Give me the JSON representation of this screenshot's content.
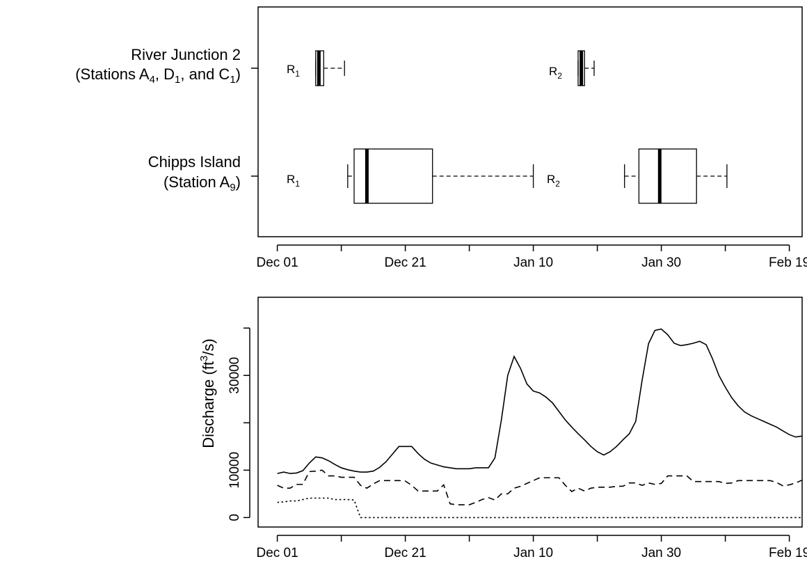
{
  "chart_data": [
    {
      "type": "boxplot",
      "x_axis_kind": "date",
      "xlim": [
        "2006-11-28",
        "2007-02-21"
      ],
      "xticks": [
        {
          "date": "2006-12-01",
          "label": "Dec 01"
        },
        {
          "date": "2006-12-21",
          "label": "Dec 21"
        },
        {
          "date": "2007-01-10",
          "label": "Jan 10"
        },
        {
          "date": "2007-01-30",
          "label": "Jan 30"
        },
        {
          "date": "2007-02-19",
          "label": "Feb 19"
        }
      ],
      "minor_ticks": [
        "2006-12-11",
        "2006-12-31",
        "2007-01-20",
        "2007-02-09"
      ],
      "rows": [
        {
          "label_line1": "River Junction 2",
          "label_line2": {
            "prefix": "(Stations A",
            "s1": "4",
            "mid1": ", D",
            "s2": "1",
            "mid2": ", and C",
            "s3": "1",
            "suffix": ")"
          },
          "boxes": [
            {
              "release": "R",
              "sub": "1",
              "min": "2006-12-07T00:00",
              "q1": "2006-12-07T00:00",
              "median": "2006-12-07T12:00",
              "q3": "2006-12-08T06:00",
              "max": "2006-12-11T12:00"
            },
            {
              "release": "R",
              "sub": "2",
              "min": "2007-01-17T00:00",
              "q1": "2007-01-17T00:00",
              "median": "2007-01-17T12:00",
              "q3": "2007-01-18T00:00",
              "max": "2007-01-19T12:00"
            }
          ]
        },
        {
          "label_line1": "Chipps Island",
          "label_line2": {
            "prefix": "(Station A",
            "s1": "9",
            "suffix": ")"
          },
          "boxes": [
            {
              "release": "R",
              "sub": "1",
              "min": "2006-12-12T00:00",
              "q1": "2006-12-13T00:00",
              "median": "2006-12-15T00:00",
              "q3": "2006-12-25T06:00",
              "max": "2007-01-10T00:00"
            },
            {
              "release": "R",
              "sub": "2",
              "min": "2007-01-24T06:00",
              "q1": "2007-01-26T12:00",
              "median": "2007-01-29T18:00",
              "q3": "2007-02-04T12:00",
              "max": "2007-02-09T06:00"
            }
          ]
        }
      ]
    },
    {
      "type": "line",
      "x_axis_kind": "date",
      "xlim": [
        "2006-11-28",
        "2007-02-21"
      ],
      "ylim": [
        -2000,
        46500
      ],
      "yticks": [
        0,
        10000,
        30000
      ],
      "ytick_labels": [
        "0",
        "10000",
        "30000"
      ],
      "ylabel": {
        "main": "Discharge (ft",
        "sup": "3",
        "tail": "/s)"
      },
      "xticks": [
        {
          "date": "2006-12-01",
          "label": "Dec 01"
        },
        {
          "date": "2006-12-21",
          "label": "Dec 21"
        },
        {
          "date": "2007-01-10",
          "label": "Jan 10"
        },
        {
          "date": "2007-01-30",
          "label": "Jan 30"
        },
        {
          "date": "2007-02-19",
          "label": "Feb 19"
        }
      ],
      "minor_ticks": [
        "2006-12-11",
        "2006-12-31",
        "2007-01-20",
        "2007-02-09"
      ],
      "series": [
        {
          "style": "solid",
          "points": [
            [
              "2006-12-01",
              9300
            ],
            [
              "2006-12-02",
              9600
            ],
            [
              "2006-12-03",
              9300
            ],
            [
              "2006-12-04",
              9400
            ],
            [
              "2006-12-05",
              9900
            ],
            [
              "2006-12-06",
              11500
            ],
            [
              "2006-12-07",
              12800
            ],
            [
              "2006-12-08",
              12600
            ],
            [
              "2006-12-09",
              12000
            ],
            [
              "2006-12-10",
              11200
            ],
            [
              "2006-12-11",
              10500
            ],
            [
              "2006-12-12",
              10100
            ],
            [
              "2006-12-13",
              9800
            ],
            [
              "2006-12-14",
              9600
            ],
            [
              "2006-12-15",
              9600
            ],
            [
              "2006-12-16",
              9800
            ],
            [
              "2006-12-17",
              10600
            ],
            [
              "2006-12-18",
              11800
            ],
            [
              "2006-12-19",
              13400
            ],
            [
              "2006-12-20",
              15000
            ],
            [
              "2006-12-22",
              15000
            ],
            [
              "2006-12-23",
              13500
            ],
            [
              "2006-12-24",
              12300
            ],
            [
              "2006-12-25",
              11500
            ],
            [
              "2006-12-26",
              11100
            ],
            [
              "2006-12-27",
              10700
            ],
            [
              "2006-12-28",
              10500
            ],
            [
              "2006-12-29",
              10300
            ],
            [
              "2006-12-30",
              10300
            ],
            [
              "2006-12-31",
              10300
            ],
            [
              "2007-01-01",
              10500
            ],
            [
              "2007-01-02",
              10500
            ],
            [
              "2007-01-03",
              10500
            ],
            [
              "2007-01-04",
              12600
            ],
            [
              "2007-01-05",
              20500
            ],
            [
              "2007-01-06",
              30000
            ],
            [
              "2007-01-07",
              34000
            ],
            [
              "2007-01-08",
              31500
            ],
            [
              "2007-01-09",
              28200
            ],
            [
              "2007-01-10",
              26700
            ],
            [
              "2007-01-11",
              26300
            ],
            [
              "2007-01-12",
              25400
            ],
            [
              "2007-01-13",
              24200
            ],
            [
              "2007-01-14",
              22400
            ],
            [
              "2007-01-15",
              20600
            ],
            [
              "2007-01-16",
              19100
            ],
            [
              "2007-01-17",
              17700
            ],
            [
              "2007-01-18",
              16400
            ],
            [
              "2007-01-19",
              15000
            ],
            [
              "2007-01-20",
              13900
            ],
            [
              "2007-01-21",
              13200
            ],
            [
              "2007-01-22",
              13900
            ],
            [
              "2007-01-23",
              15000
            ],
            [
              "2007-01-24",
              16400
            ],
            [
              "2007-01-25",
              17700
            ],
            [
              "2007-01-26",
              20300
            ],
            [
              "2007-01-27",
              29000
            ],
            [
              "2007-01-28",
              36700
            ],
            [
              "2007-01-29",
              39500
            ],
            [
              "2007-01-30",
              39800
            ],
            [
              "2007-01-31",
              38600
            ],
            [
              "2007-02-01",
              36800
            ],
            [
              "2007-02-02",
              36300
            ],
            [
              "2007-02-03",
              36500
            ],
            [
              "2007-02-04",
              36800
            ],
            [
              "2007-02-05",
              37200
            ],
            [
              "2007-02-06",
              36500
            ],
            [
              "2007-02-07",
              33500
            ],
            [
              "2007-02-08",
              30000
            ],
            [
              "2007-02-09",
              27500
            ],
            [
              "2007-02-10",
              25300
            ],
            [
              "2007-02-11",
              23600
            ],
            [
              "2007-02-12",
              22300
            ],
            [
              "2007-02-13",
              21500
            ],
            [
              "2007-02-14",
              20900
            ],
            [
              "2007-02-15",
              20300
            ],
            [
              "2007-02-16",
              19700
            ],
            [
              "2007-02-17",
              19100
            ],
            [
              "2007-02-18",
              18300
            ],
            [
              "2007-02-19",
              17500
            ],
            [
              "2007-02-20",
              17000
            ],
            [
              "2007-02-21",
              17200
            ],
            [
              "2007-02-22",
              17000
            ],
            [
              "2007-02-23",
              17500
            ],
            [
              "2007-02-24",
              19500
            ]
          ]
        },
        {
          "style": "dashed",
          "points": [
            [
              "2006-12-01",
              6800
            ],
            [
              "2006-12-02",
              6200
            ],
            [
              "2006-12-03",
              6200
            ],
            [
              "2006-12-04",
              7000
            ],
            [
              "2006-12-05",
              7000
            ],
            [
              "2006-12-06",
              9700
            ],
            [
              "2006-12-07",
              9800
            ],
            [
              "2006-12-08",
              10000
            ],
            [
              "2006-12-09",
              8800
            ],
            [
              "2006-12-10",
              8800
            ],
            [
              "2006-12-11",
              8500
            ],
            [
              "2006-12-12",
              8500
            ],
            [
              "2006-12-13",
              8500
            ],
            [
              "2006-12-14",
              6800
            ],
            [
              "2006-12-15",
              6200
            ],
            [
              "2006-12-16",
              7100
            ],
            [
              "2006-12-17",
              7800
            ],
            [
              "2006-12-18",
              7800
            ],
            [
              "2006-12-19",
              7800
            ],
            [
              "2006-12-20",
              7800
            ],
            [
              "2006-12-21",
              7700
            ],
            [
              "2006-12-22",
              6800
            ],
            [
              "2006-12-23",
              5600
            ],
            [
              "2006-12-24",
              5600
            ],
            [
              "2006-12-25",
              5600
            ],
            [
              "2006-12-26",
              5600
            ],
            [
              "2006-12-27",
              6900
            ],
            [
              "2006-12-28",
              2900
            ],
            [
              "2006-12-29",
              2700
            ],
            [
              "2006-12-30",
              2700
            ],
            [
              "2006-12-31",
              2700
            ],
            [
              "2007-01-01",
              3200
            ],
            [
              "2007-01-02",
              3800
            ],
            [
              "2007-01-03",
              4200
            ],
            [
              "2007-01-04",
              3700
            ],
            [
              "2007-01-05",
              5000
            ],
            [
              "2007-01-06",
              5000
            ],
            [
              "2007-01-07",
              6200
            ],
            [
              "2007-01-08",
              6600
            ],
            [
              "2007-01-09",
              7200
            ],
            [
              "2007-01-10",
              7800
            ],
            [
              "2007-01-11",
              8400
            ],
            [
              "2007-01-12",
              8400
            ],
            [
              "2007-01-13",
              8400
            ],
            [
              "2007-01-14",
              8400
            ],
            [
              "2007-01-15",
              6800
            ],
            [
              "2007-01-16",
              5500
            ],
            [
              "2007-01-17",
              6200
            ],
            [
              "2007-01-18",
              5600
            ],
            [
              "2007-01-19",
              6200
            ],
            [
              "2007-01-20",
              6400
            ],
            [
              "2007-01-21",
              6400
            ],
            [
              "2007-01-22",
              6400
            ],
            [
              "2007-01-23",
              6600
            ],
            [
              "2007-01-24",
              6600
            ],
            [
              "2007-01-25",
              7300
            ],
            [
              "2007-01-26",
              7300
            ],
            [
              "2007-01-27",
              6800
            ],
            [
              "2007-01-28",
              7300
            ],
            [
              "2007-01-29",
              7000
            ],
            [
              "2007-01-30",
              7200
            ],
            [
              "2007-01-31",
              8800
            ],
            [
              "2007-02-01",
              8800
            ],
            [
              "2007-02-02",
              8800
            ],
            [
              "2007-02-03",
              8800
            ],
            [
              "2007-02-04",
              7600
            ],
            [
              "2007-02-05",
              7600
            ],
            [
              "2007-02-06",
              7600
            ],
            [
              "2007-02-07",
              7600
            ],
            [
              "2007-02-08",
              7600
            ],
            [
              "2007-02-09",
              7200
            ],
            [
              "2007-02-10",
              7300
            ],
            [
              "2007-02-11",
              7800
            ],
            [
              "2007-02-12",
              7800
            ],
            [
              "2007-02-13",
              7800
            ],
            [
              "2007-02-14",
              7800
            ],
            [
              "2007-02-15",
              7800
            ],
            [
              "2007-02-16",
              7800
            ],
            [
              "2007-02-17",
              7400
            ],
            [
              "2007-02-18",
              6700
            ],
            [
              "2007-02-19",
              6900
            ],
            [
              "2007-02-20",
              7300
            ],
            [
              "2007-02-21",
              7900
            ],
            [
              "2007-02-22",
              7800
            ],
            [
              "2007-02-23",
              7300
            ],
            [
              "2007-02-24",
              7200
            ]
          ]
        },
        {
          "style": "dotted",
          "points": [
            [
              "2006-12-01",
              3200
            ],
            [
              "2006-12-02",
              3300
            ],
            [
              "2006-12-03",
              3500
            ],
            [
              "2006-12-04",
              3500
            ],
            [
              "2006-12-05",
              3800
            ],
            [
              "2006-12-06",
              4100
            ],
            [
              "2006-12-07",
              4100
            ],
            [
              "2006-12-08",
              4100
            ],
            [
              "2006-12-09",
              4100
            ],
            [
              "2006-12-10",
              3800
            ],
            [
              "2006-12-11",
              3800
            ],
            [
              "2006-12-12",
              3800
            ],
            [
              "2006-12-13",
              3700
            ],
            [
              "2006-12-14",
              0
            ],
            [
              "2006-12-18",
              0
            ],
            [
              "2007-02-24",
              0
            ]
          ]
        }
      ]
    }
  ]
}
